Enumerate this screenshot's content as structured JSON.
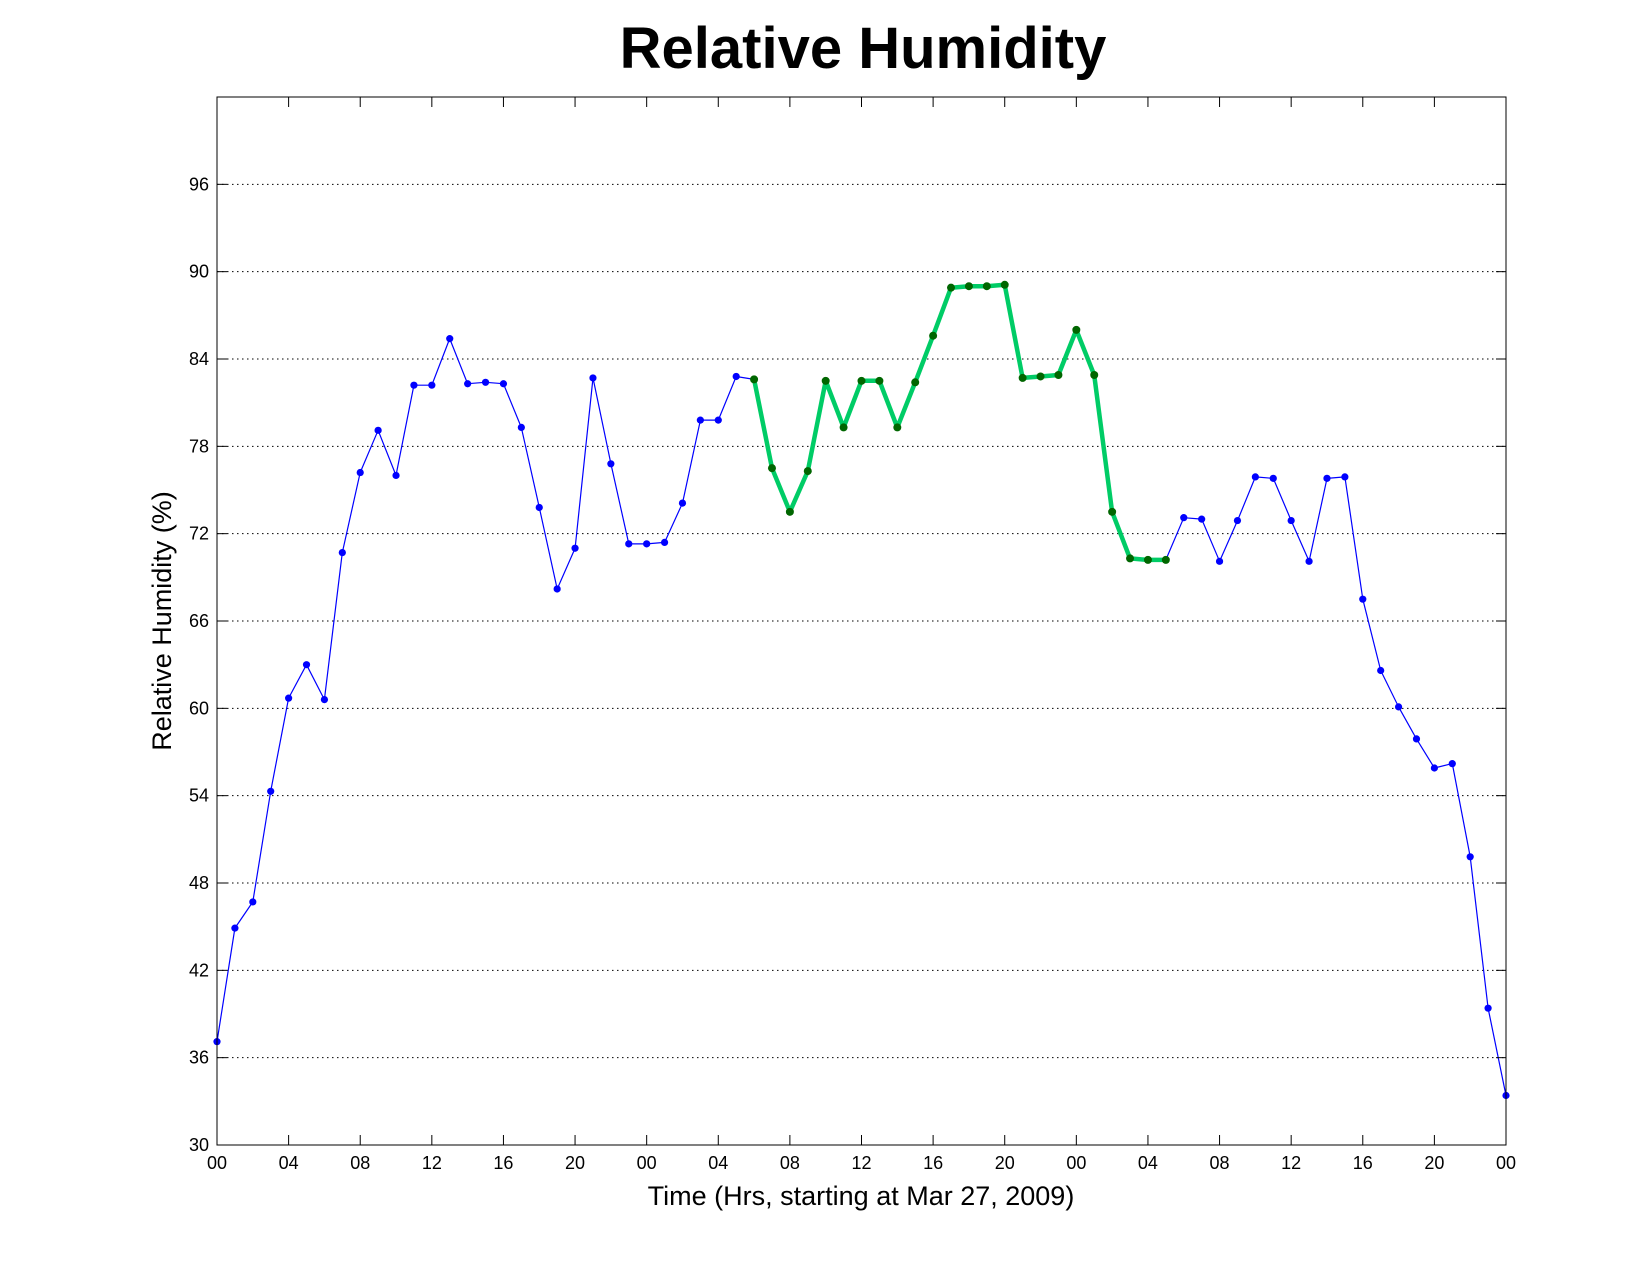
{
  "chart_data": {
    "type": "line",
    "title": "Relative Humidity",
    "xlabel": "Time (Hrs, starting at Mar 27, 2009)",
    "ylabel": "Relative Humidity (%)",
    "xlim": [
      0,
      72
    ],
    "ylim": [
      30,
      102
    ],
    "grid": "y-dotted",
    "legend": "none",
    "x_ticks": [
      0,
      4,
      8,
      12,
      16,
      20,
      24,
      28,
      32,
      36,
      40,
      44,
      48,
      52,
      56,
      60,
      64,
      68,
      72
    ],
    "x_tick_labels": [
      "00",
      "04",
      "08",
      "12",
      "16",
      "20",
      "00",
      "04",
      "08",
      "12",
      "16",
      "20",
      "00",
      "04",
      "08",
      "12",
      "16",
      "20",
      "00"
    ],
    "y_ticks": [
      30,
      36,
      42,
      48,
      54,
      60,
      66,
      72,
      78,
      84,
      90,
      96
    ],
    "y_tick_labels": [
      "30",
      "36",
      "42",
      "48",
      "54",
      "60",
      "66",
      "72",
      "78",
      "84",
      "90",
      "96"
    ],
    "series": [
      {
        "color": "#0000ff",
        "style": "thin-line-markers",
        "x": [
          0,
          1,
          2,
          3,
          4,
          5,
          6,
          7,
          8,
          9,
          10,
          11,
          12,
          13,
          14,
          15,
          16,
          17,
          18,
          19,
          20,
          21,
          22,
          23,
          24,
          25,
          26,
          27,
          28,
          29,
          30,
          31,
          32,
          33,
          34,
          35,
          36,
          37,
          38,
          39,
          40,
          41,
          42,
          43,
          44,
          45,
          46,
          47,
          48,
          49,
          50,
          51,
          52,
          53,
          54,
          55,
          56,
          57,
          58,
          59,
          60,
          61,
          62,
          63,
          64,
          65,
          66,
          67,
          68,
          69,
          70,
          71,
          72
        ],
        "values": [
          37.1,
          44.9,
          46.7,
          54.3,
          60.7,
          63.0,
          60.6,
          70.7,
          76.2,
          79.1,
          76.0,
          82.2,
          82.2,
          85.4,
          82.3,
          82.4,
          82.3,
          79.3,
          73.8,
          68.2,
          71.0,
          82.7,
          76.8,
          71.3,
          71.3,
          71.4,
          74.1,
          79.8,
          79.8,
          82.8,
          82.6,
          76.5,
          73.5,
          76.3,
          82.5,
          79.3,
          82.5,
          82.5,
          79.3,
          82.4,
          85.6,
          88.9,
          89.0,
          89.0,
          89.1,
          82.7,
          82.8,
          82.9,
          86.0,
          82.9,
          73.5,
          70.3,
          70.2,
          70.2,
          73.1,
          73.0,
          70.1,
          72.9,
          75.9,
          75.8,
          72.9,
          70.1,
          75.8,
          75.9,
          67.5,
          62.6,
          60.1,
          57.9,
          55.9,
          56.2,
          49.8,
          39.4,
          33.4
        ]
      },
      {
        "color": "#00cc66",
        "marker_color": "#006600",
        "style": "thick-line-markers",
        "x": [
          30,
          31,
          32,
          33,
          34,
          35,
          36,
          37,
          38,
          39,
          40,
          41,
          42,
          43,
          44,
          45,
          46,
          47,
          48,
          49,
          50,
          51,
          52,
          53
        ],
        "values": [
          82.6,
          76.5,
          73.5,
          76.3,
          82.5,
          79.3,
          82.5,
          82.5,
          79.3,
          82.4,
          85.6,
          88.9,
          89.0,
          89.0,
          89.1,
          82.7,
          82.8,
          82.9,
          86.0,
          82.9,
          73.5,
          70.3,
          70.2,
          70.2
        ]
      }
    ]
  }
}
